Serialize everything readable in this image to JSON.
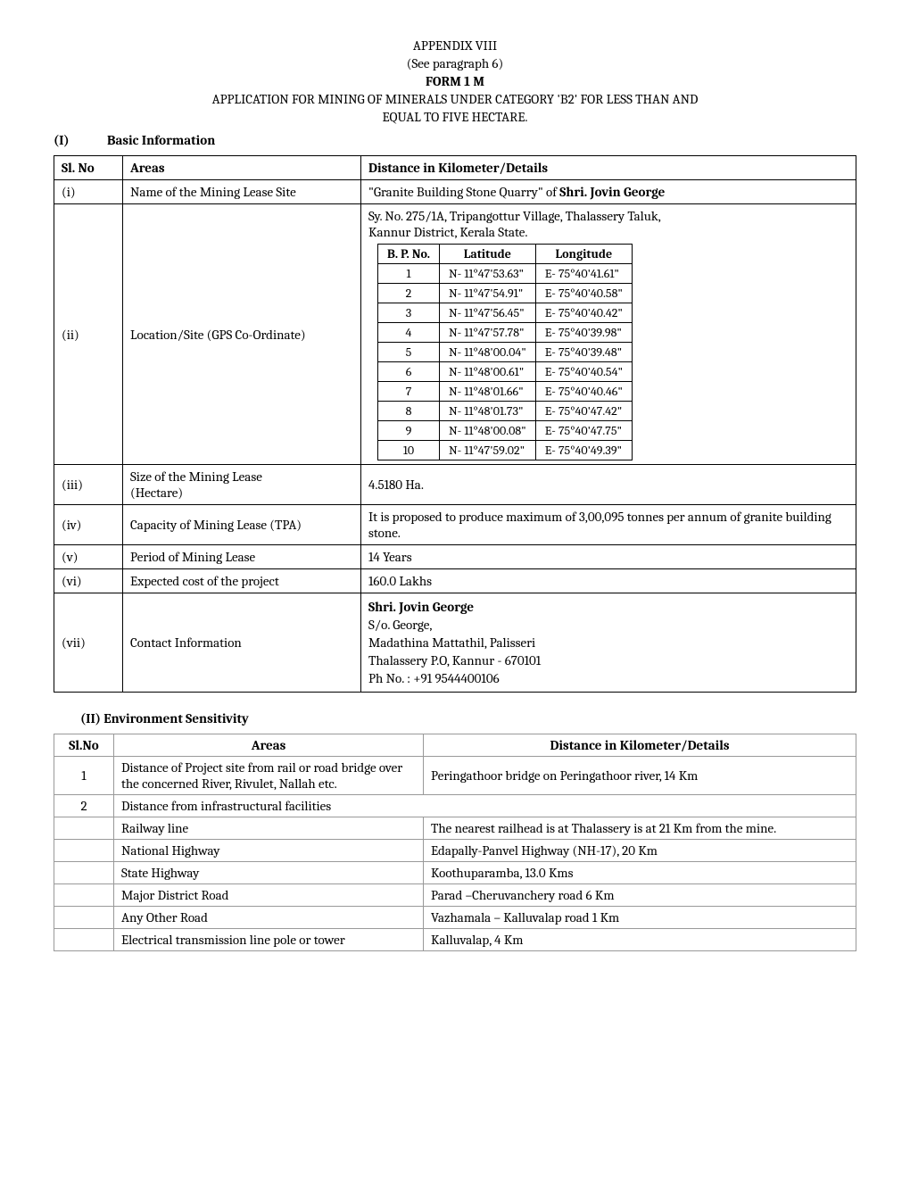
{
  "header": {
    "appendix": "APPENDIX VIII",
    "see_para": "(See paragraph 6)",
    "form": "FORM 1 M",
    "title_line1": "APPLICATION FOR MINING OF MINERALS UNDER CATEGORY 'B2' FOR LESS THAN AND",
    "title_line2": "EQUAL TO FIVE HECTARE."
  },
  "section1": {
    "num": "(I)",
    "title": "Basic Information",
    "col_sl": "Sl. No",
    "col_areas": "Areas",
    "col_details": "Distance in Kilometer/Details",
    "rows": {
      "i": {
        "sl": "(i)",
        "area": "Name of the Mining Lease Site",
        "detail_prefix": "\"Granite Building Stone Quarry\" of ",
        "detail_bold": "Shri. Jovin George"
      },
      "ii": {
        "sl": "(ii)",
        "area": "Location/Site (GPS Co-Ordinate)",
        "loc_text_line1": "Sy. No. 275/1A, Tripangottur Village, Thalassery Taluk,",
        "loc_text_line2": "Kannur District, Kerala State.",
        "col_bp": "B. P. No.",
        "col_lat": "Latitude",
        "col_lon": "Longitude",
        "coords": [
          {
            "bp": "1",
            "lat": "N- 11°47'53.63\"",
            "lon": "E- 75°40'41.61\""
          },
          {
            "bp": "2",
            "lat": "N- 11°47'54.91\"",
            "lon": "E- 75°40'40.58\""
          },
          {
            "bp": "3",
            "lat": "N- 11°47'56.45\"",
            "lon": "E- 75°40'40.42\""
          },
          {
            "bp": "4",
            "lat": "N- 11°47'57.78\"",
            "lon": "E- 75°40'39.98\""
          },
          {
            "bp": "5",
            "lat": "N- 11°48'00.04\"",
            "lon": "E- 75°40'39.48\""
          },
          {
            "bp": "6",
            "lat": "N- 11°48'00.61\"",
            "lon": "E- 75°40'40.54\""
          },
          {
            "bp": "7",
            "lat": "N- 11°48'01.66\"",
            "lon": "E- 75°40'40.46\""
          },
          {
            "bp": "8",
            "lat": "N- 11°48'01.73\"",
            "lon": "E- 75°40'47.42\""
          },
          {
            "bp": "9",
            "lat": "N- 11°48'00.08\"",
            "lon": "E- 75°40'47.75\""
          },
          {
            "bp": "10",
            "lat": "N- 11°47'59.02\"",
            "lon": "E- 75°40'49.39\""
          }
        ]
      },
      "iii": {
        "sl": "(iii)",
        "area_line1": "Size of the Mining Lease",
        "area_line2": "(Hectare)",
        "detail": "4.5180 Ha."
      },
      "iv": {
        "sl": "(iv)",
        "area": "Capacity of Mining Lease (TPA)",
        "detail": "It is proposed to produce maximum of 3,00,095 tonnes per annum of granite building stone."
      },
      "v": {
        "sl": "(v)",
        "area": "Period of Mining Lease",
        "detail": "14 Years"
      },
      "vi": {
        "sl": "(vi)",
        "area": "Expected cost of the project",
        "detail": "160.0 Lakhs"
      },
      "vii": {
        "sl": "(vii)",
        "area": "Contact Information",
        "name": "Shri. Jovin George",
        "line2": "S/o. George,",
        "line3": "Madathina Mattathil, Palisseri",
        "line4": "Thalassery P.O, Kannur - 670101",
        "line5": "Ph No. :  +91 9544400106"
      }
    }
  },
  "section2": {
    "heading": "(II) Environment Sensitivity",
    "col_sl": "Sl.No",
    "col_areas": "Areas",
    "col_details": "Distance in Kilometer/Details",
    "rows": [
      {
        "sl": "1",
        "area": "Distance of Project site from rail or road bridge over the concerned River, Rivulet, Nallah etc.",
        "detail": "Peringathoor bridge on Peringathoor river, 14 Km"
      },
      {
        "sl": "2",
        "area": "Distance from infrastructural facilities",
        "detail": ""
      }
    ],
    "subrows": [
      {
        "area": "Railway line",
        "detail": "The nearest railhead is at Thalassery is at 21 Km from the mine."
      },
      {
        "area": "National Highway",
        "detail": "Edapally-Panvel Highway (NH-17), 20 Km"
      },
      {
        "area": "State Highway",
        "detail": "Koothuparamba, 13.0 Kms"
      },
      {
        "area": "Major District Road",
        "detail": "Parad –Cheruvanchery road 6 Km"
      },
      {
        "area": "Any Other Road",
        "detail": "Vazhamala – Kalluvalap road 1 Km"
      },
      {
        "area": "Electrical transmission line pole or tower",
        "detail": "Kalluvalap, 4 Km"
      }
    ]
  }
}
